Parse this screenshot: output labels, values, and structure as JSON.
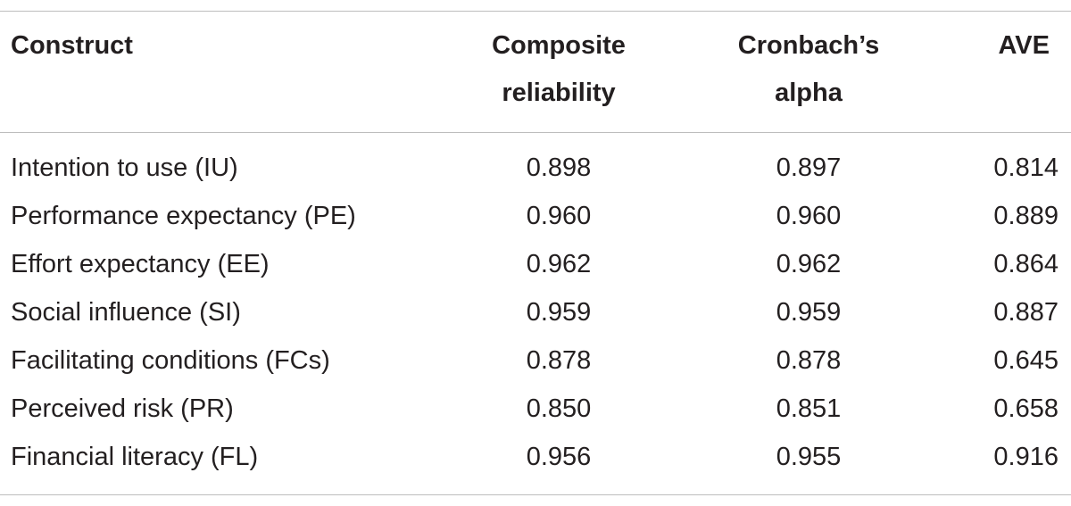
{
  "table": {
    "headers": {
      "construct": "Construct",
      "composite_line1": "Composite",
      "composite_line2": "reliability",
      "cronbach_line1": "Cronbach’s",
      "cronbach_line2": "alpha",
      "ave": "AVE"
    },
    "rows": [
      {
        "construct": "Intention to use (IU)",
        "composite": "0.898",
        "cronbach": "0.897",
        "ave": "0.814"
      },
      {
        "construct": "Performance expectancy (PE)",
        "composite": "0.960",
        "cronbach": "0.960",
        "ave": "0.889"
      },
      {
        "construct": "Effort expectancy (EE)",
        "composite": "0.962",
        "cronbach": "0.962",
        "ave": "0.864"
      },
      {
        "construct": "Social influence (SI)",
        "composite": "0.959",
        "cronbach": "0.959",
        "ave": "0.887"
      },
      {
        "construct": "Facilitating conditions (FCs)",
        "composite": "0.878",
        "cronbach": "0.878",
        "ave": "0.645"
      },
      {
        "construct": "Perceived risk (PR)",
        "composite": "0.850",
        "cronbach": "0.851",
        "ave": "0.658"
      },
      {
        "construct": "Financial literacy (FL)",
        "composite": "0.956",
        "cronbach": "0.955",
        "ave": "0.916"
      }
    ]
  }
}
